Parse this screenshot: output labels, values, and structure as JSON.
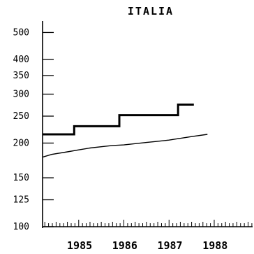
{
  "chart_data": {
    "type": "line",
    "title": "ITALIA",
    "xlabel": "",
    "ylabel": "",
    "yscale": "log",
    "ylim": [
      100,
      550
    ],
    "xlim": [
      1984.2,
      1988.85
    ],
    "yticks": [
      100,
      125,
      150,
      200,
      250,
      300,
      350,
      400,
      500
    ],
    "ytick_labels": [
      "100",
      "125",
      "150",
      "200",
      "250",
      "300",
      "350",
      "400",
      "500"
    ],
    "xtick_labels": [
      "1985",
      "1986",
      "1987",
      "1988"
    ],
    "xtick_positions": [
      1985,
      1986,
      1987,
      1988
    ],
    "grid": false,
    "legend": "none",
    "series": [
      {
        "style": "thick-step",
        "color": "#000000",
        "x": [
          1984.2,
          1984.9,
          1984.9,
          1985.9,
          1985.9,
          1986.75,
          1986.75,
          1987.2,
          1987.2,
          1987.55
        ],
        "y": [
          215,
          215,
          230,
          230,
          252,
          252,
          252,
          252,
          275,
          275
        ]
      },
      {
        "style": "thin-line",
        "color": "#000000",
        "x": [
          1984.2,
          1984.4,
          1984.75,
          1985.0,
          1985.25,
          1985.5,
          1985.75,
          1986.0,
          1986.25,
          1986.5,
          1986.75,
          1987.0,
          1987.25,
          1987.5,
          1987.85
        ],
        "y": [
          178,
          182,
          186,
          189,
          192,
          194,
          196,
          197,
          199,
          201,
          203,
          205,
          208,
          211,
          215
        ]
      }
    ]
  }
}
